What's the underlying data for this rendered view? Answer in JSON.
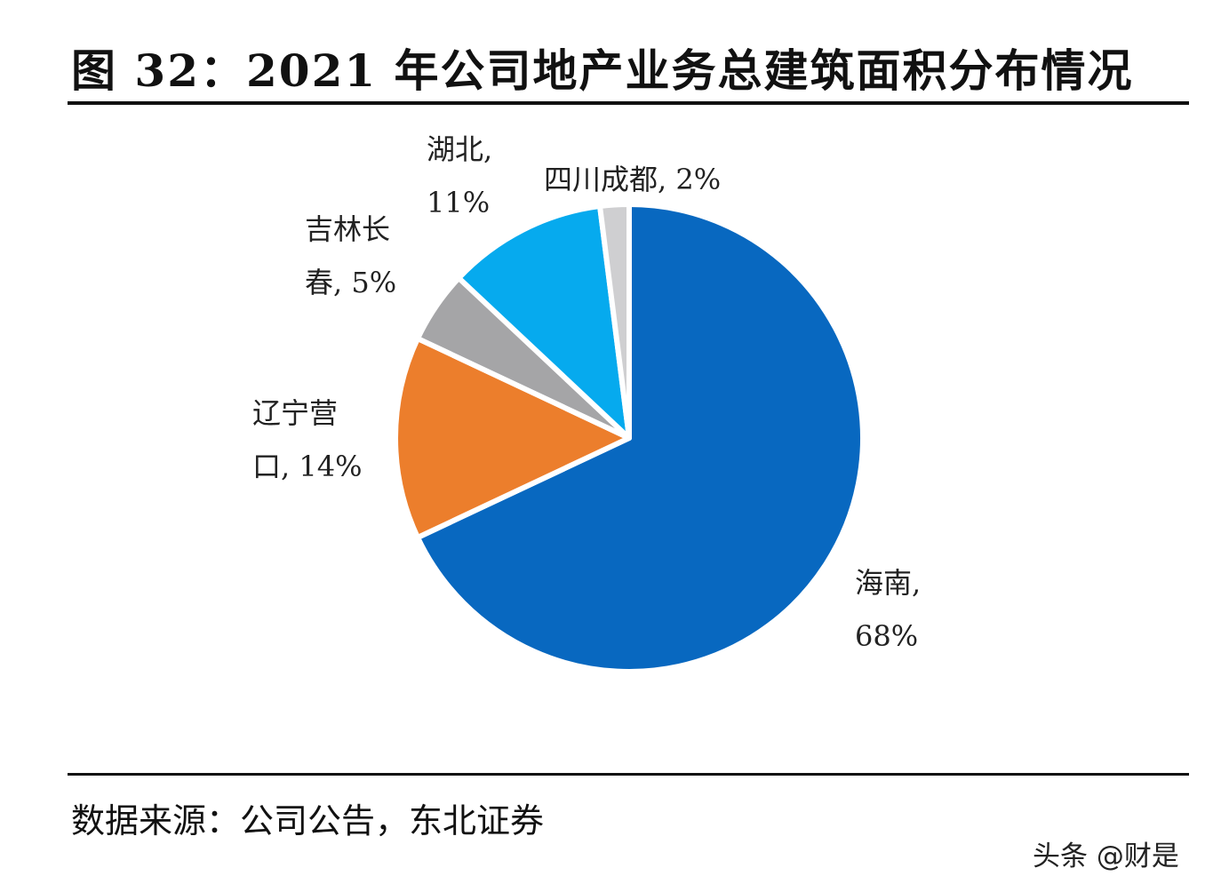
{
  "header": {
    "title": "图  32：2021 年公司地产业务总建筑面积分布情况"
  },
  "footer": {
    "source": "数据来源：公司公告，东北证券",
    "watermark": "头条 @财是"
  },
  "labels": {
    "hainan": {
      "line1": "海南,",
      "line2": "68%"
    },
    "liaoning": {
      "line1": "辽宁营",
      "line2": "口, 14%"
    },
    "jilin": {
      "line1": "吉林长",
      "line2": "春, 5%"
    },
    "hubei": {
      "line1": "湖北,",
      "line2": "11%"
    },
    "sichuan": {
      "line1": "四川成都, 2%"
    }
  },
  "chart_data": {
    "type": "pie",
    "title": "2021 年公司地产业务总建筑面积分布情况",
    "categories": [
      "海南",
      "辽宁营口",
      "吉林长春",
      "湖北",
      "四川成都"
    ],
    "values": [
      68,
      14,
      5,
      11,
      2
    ],
    "unit": "%",
    "colors": [
      "#0868C0",
      "#EC7E2C",
      "#A5A5A7",
      "#06AAEE",
      "#CFCFD1"
    ],
    "start_angle": "12 o'clock, clockwise",
    "legend": "none (data labels beside slices)",
    "source": "数据来源：公司公告，东北证券"
  }
}
